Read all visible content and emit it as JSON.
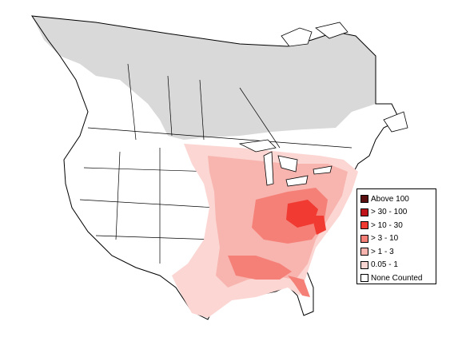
{
  "legend": {
    "items": [
      {
        "label": "Above 100",
        "color": "#5a1010"
      },
      {
        "label": "> 30 - 100",
        "color": "#c0141a"
      },
      {
        "label": "> 10 - 30",
        "color": "#f03a32"
      },
      {
        "label": "> 3 - 10",
        "color": "#f48078"
      },
      {
        "label": "> 1 - 3",
        "color": "#f8b4ae"
      },
      {
        "label": "0.05 - 1",
        "color": "#fbd6d2"
      },
      {
        "label": "None Counted",
        "color": "#ffffff"
      }
    ]
  },
  "colors": {
    "no_data_region": "#d8d8d8",
    "boundary": "#000000",
    "background": "#ffffff"
  }
}
